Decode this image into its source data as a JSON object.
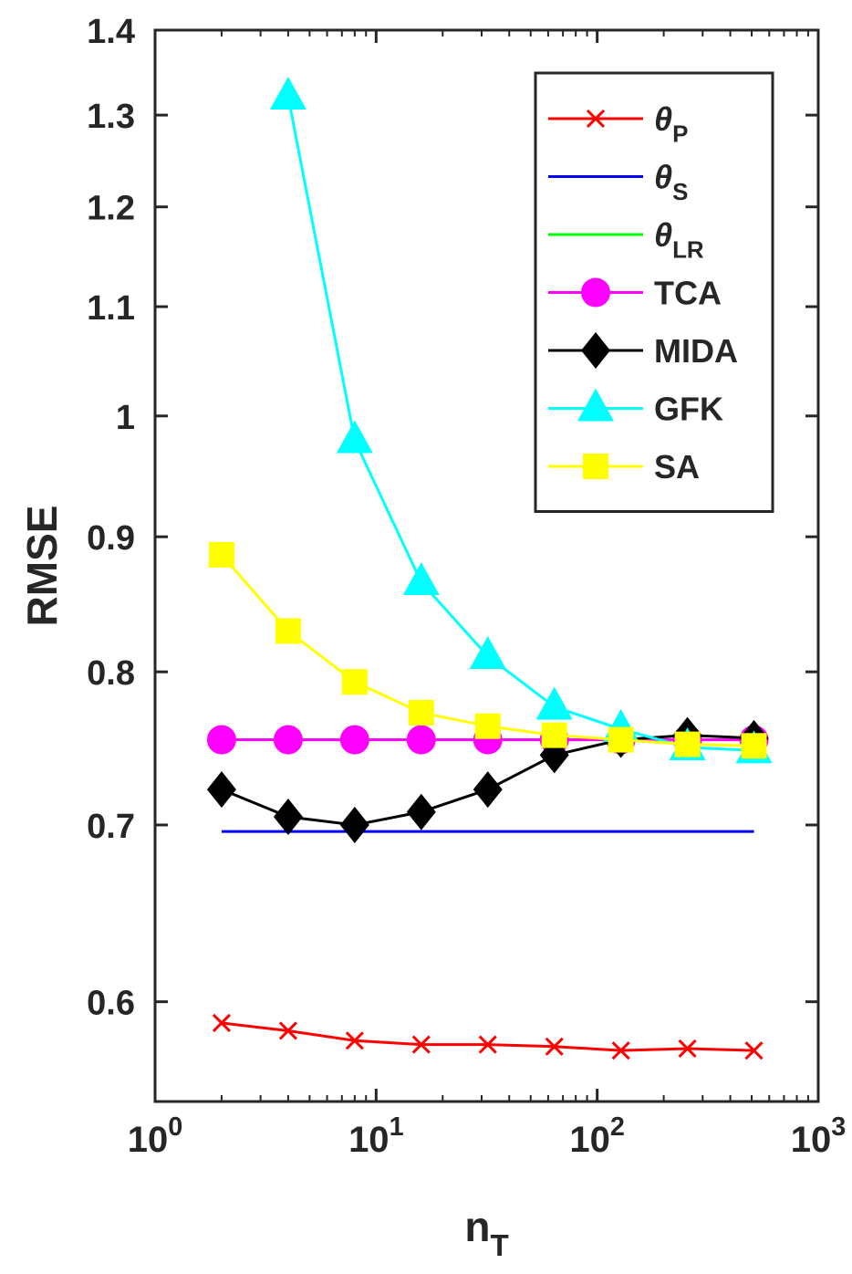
{
  "chart_data": {
    "type": "line",
    "xlabel": "n_T",
    "ylabel": "RMSE",
    "xscale": "log",
    "yscale": "log",
    "xlim": [
      1,
      1000
    ],
    "ylim": [
      0.55,
      1.4
    ],
    "xticks": [
      {
        "value": 1,
        "label": "10^0"
      },
      {
        "value": 10,
        "label": "10^1"
      },
      {
        "value": 100,
        "label": "10^2"
      },
      {
        "value": 1000,
        "label": "10^3"
      }
    ],
    "yticks": [
      0.6,
      0.7,
      0.8,
      0.9,
      1,
      1.1,
      1.2,
      1.3,
      1.4
    ],
    "legend": "upper right",
    "x": [
      2,
      4,
      8,
      16,
      32,
      64,
      128,
      256,
      512
    ],
    "series": [
      {
        "name": "θ_P",
        "color": "#ff0000",
        "marker": "x",
        "values": [
          0.589,
          0.585,
          0.58,
          0.578,
          0.578,
          0.577,
          0.575,
          0.576,
          0.575
        ]
      },
      {
        "name": "θ_S",
        "color": "#0000ff",
        "marker": "none",
        "values": [
          0.696,
          0.696,
          0.696,
          0.696,
          0.696,
          0.696,
          0.696,
          0.696,
          0.696
        ]
      },
      {
        "name": "θ_LR",
        "color": "#00ff00",
        "marker": "none",
        "values": [
          0.754,
          0.754,
          0.754,
          0.754,
          0.754,
          0.754,
          0.754,
          0.754,
          0.754
        ]
      },
      {
        "name": "TCA",
        "color": "#ff00ff",
        "marker": "circle",
        "values": [
          0.754,
          0.754,
          0.754,
          0.754,
          0.754,
          0.754,
          0.754,
          0.754,
          0.754
        ]
      },
      {
        "name": "MIDA",
        "color": "#000000",
        "marker": "diamond",
        "values": [
          0.722,
          0.705,
          0.7,
          0.708,
          0.722,
          0.744,
          0.754,
          0.757,
          0.755
        ]
      },
      {
        "name": "GFK",
        "color": "#00ffff",
        "marker": "triangle",
        "values": [
          null,
          1.321,
          0.979,
          0.865,
          0.811,
          0.776,
          0.761,
          0.749,
          0.747
        ]
      },
      {
        "name": "SA",
        "color": "#ffff00",
        "marker": "square",
        "values": [
          0.886,
          0.829,
          0.793,
          0.772,
          0.763,
          0.757,
          0.754,
          0.751,
          0.75
        ]
      }
    ]
  }
}
